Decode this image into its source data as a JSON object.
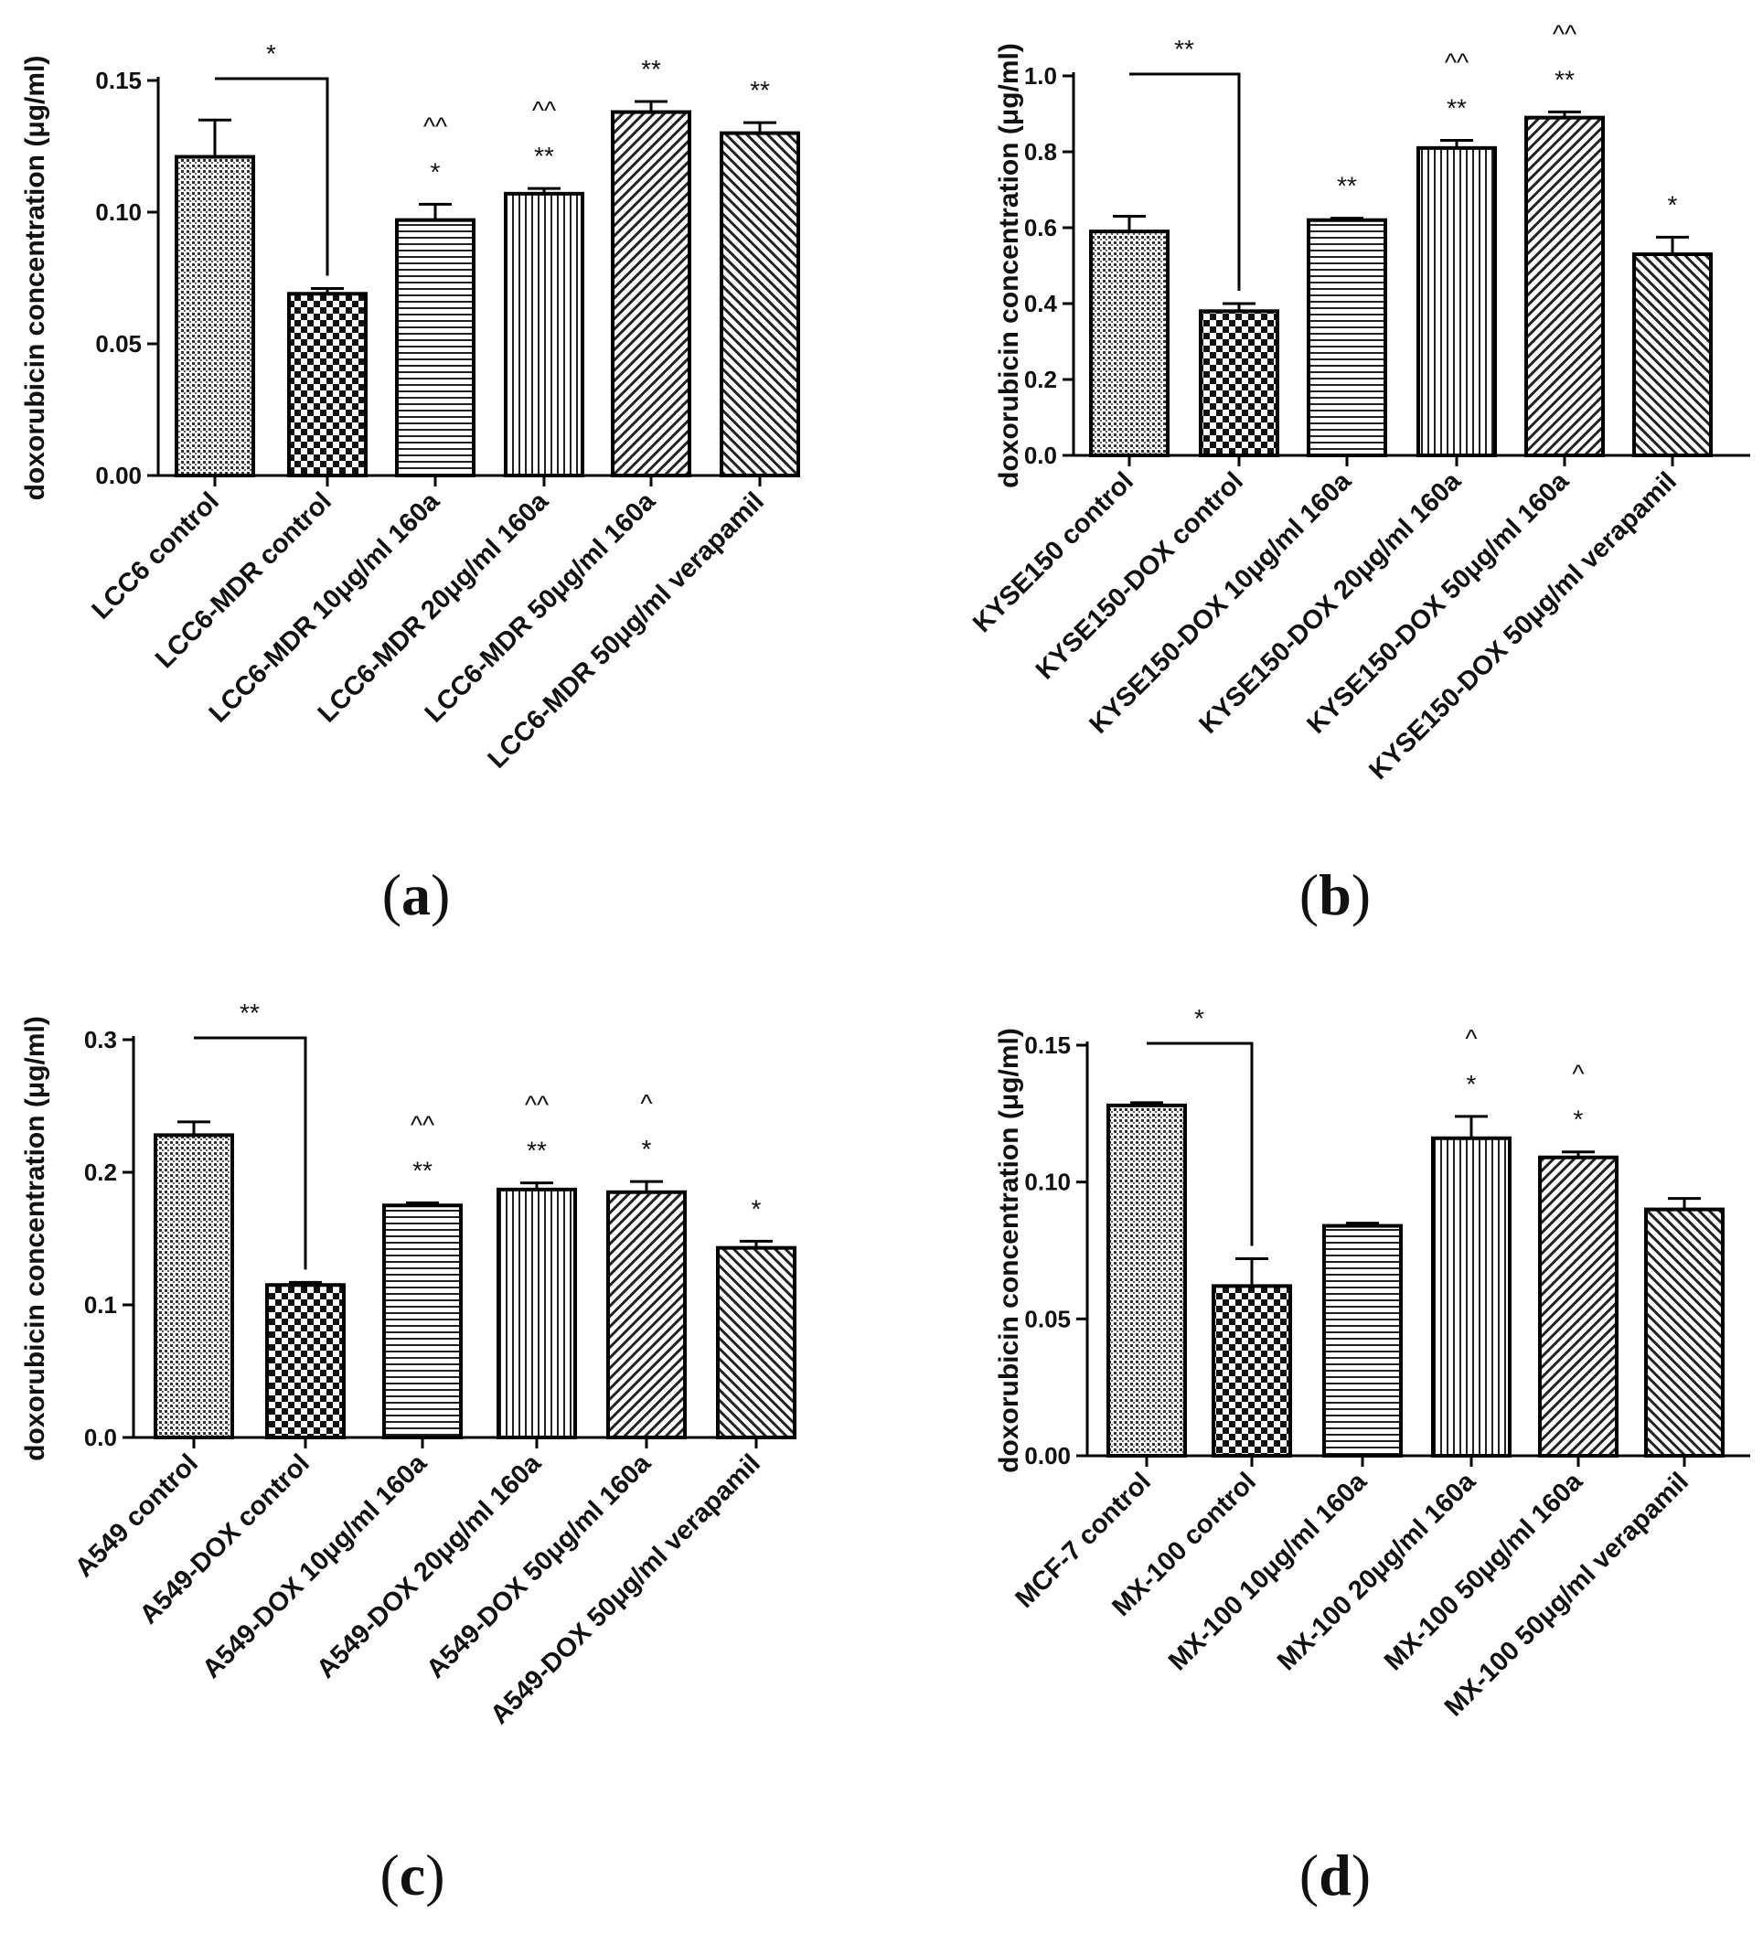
{
  "chart_data": [
    {
      "type": "bar",
      "panel": "(a)",
      "ylabel": "doxorubicin concentration (μg/ml)",
      "ylim": [
        0,
        0.15
      ],
      "yticks": [
        "0.00",
        "0.05",
        "0.10",
        "0.15"
      ],
      "categories": [
        "LCC6 control",
        "LCC6-MDR control",
        "LCC6-MDR 10μg/ml 160a",
        "LCC6-MDR 20μg/ml 160a",
        "LCC6-MDR 50μg/ml 160a",
        "LCC6-MDR 50μg/ml verapamil"
      ],
      "values": [
        0.121,
        0.069,
        0.097,
        0.107,
        0.138,
        0.13
      ],
      "errors": [
        0.014,
        0.002,
        0.006,
        0.002,
        0.004,
        0.004
      ],
      "patterns": [
        "dots",
        "checker",
        "hlines",
        "vlines",
        "diag-right",
        "diag-left"
      ],
      "significance": [
        "",
        "",
        "*",
        "**",
        "**",
        "**"
      ],
      "secondary_marks": [
        "",
        "",
        "^^",
        "^^",
        "",
        ""
      ],
      "bracket": {
        "from": 0,
        "to": 1,
        "label": "*"
      }
    },
    {
      "type": "bar",
      "panel": "(b)",
      "ylabel": "doxorubicin concentration (μg/ml)",
      "ylim": [
        0,
        1.0
      ],
      "yticks": [
        "0.0",
        "0.2",
        "0.4",
        "0.6",
        "0.8",
        "1.0"
      ],
      "categories": [
        "KYSE150 control",
        "KYSE150-DOX control",
        "KYSE150-DOX 10μg/ml 160a",
        "KYSE150-DOX 20μg/ml 160a",
        "KYSE150-DOX 50μg/ml 160a",
        "KYSE150-DOX 50μg/ml verapamil"
      ],
      "values": [
        0.59,
        0.38,
        0.62,
        0.81,
        0.89,
        0.53
      ],
      "errors": [
        0.04,
        0.02,
        0.005,
        0.02,
        0.015,
        0.045
      ],
      "patterns": [
        "dots",
        "checker",
        "hlines",
        "vlines",
        "diag-right",
        "diag-left"
      ],
      "significance": [
        "",
        "",
        "**",
        "**",
        "**",
        "*"
      ],
      "secondary_marks": [
        "",
        "",
        "",
        "^^",
        "^^",
        ""
      ],
      "bracket": {
        "from": 0,
        "to": 1,
        "label": "**"
      }
    },
    {
      "type": "bar",
      "panel": "(c)",
      "ylabel": "doxorubicin concentration (μg/ml)",
      "ylim": [
        0,
        0.3
      ],
      "yticks": [
        "0.0",
        "0.1",
        "0.2",
        "0.3"
      ],
      "categories": [
        "A549 control",
        "A549-DOX control",
        "A549-DOX 10μg/ml 160a",
        "A549-DOX 20μg/ml 160a",
        "A549-DOX 50μg/ml 160a",
        "A549-DOX 50μg/ml verapamil"
      ],
      "values": [
        0.228,
        0.115,
        0.175,
        0.187,
        0.185,
        0.143
      ],
      "errors": [
        0.01,
        0.002,
        0.002,
        0.005,
        0.008,
        0.005
      ],
      "patterns": [
        "dots",
        "checker",
        "hlines",
        "vlines",
        "diag-right",
        "diag-left"
      ],
      "significance": [
        "",
        "",
        "**",
        "**",
        "*",
        "*"
      ],
      "secondary_marks": [
        "",
        "",
        "^^",
        "^^",
        "^",
        ""
      ],
      "bracket": {
        "from": 0,
        "to": 1,
        "label": "**"
      }
    },
    {
      "type": "bar",
      "panel": "(d)",
      "ylabel": "doxorubicin concentration (μg/ml)",
      "ylim": [
        0,
        0.15
      ],
      "yticks": [
        "0.00",
        "0.05",
        "0.10",
        "0.15"
      ],
      "categories": [
        "MCF-7 control",
        "MX-100 control",
        "MX-100 10μg/ml 160a",
        "MX-100 20μg/ml 160a",
        "MX-100 50μg/ml 160a",
        "MX-100 50μg/ml verapamil"
      ],
      "values": [
        0.128,
        0.062,
        0.084,
        0.116,
        0.109,
        0.09
      ],
      "errors": [
        0.001,
        0.01,
        0.001,
        0.008,
        0.002,
        0.004
      ],
      "patterns": [
        "dots",
        "checker",
        "hlines",
        "vlines",
        "diag-right",
        "diag-left"
      ],
      "significance": [
        "",
        "",
        "",
        "*",
        "*",
        ""
      ],
      "secondary_marks": [
        "",
        "",
        "",
        "^",
        "^",
        ""
      ],
      "bracket": {
        "from": 0,
        "to": 1,
        "label": "*"
      }
    }
  ]
}
